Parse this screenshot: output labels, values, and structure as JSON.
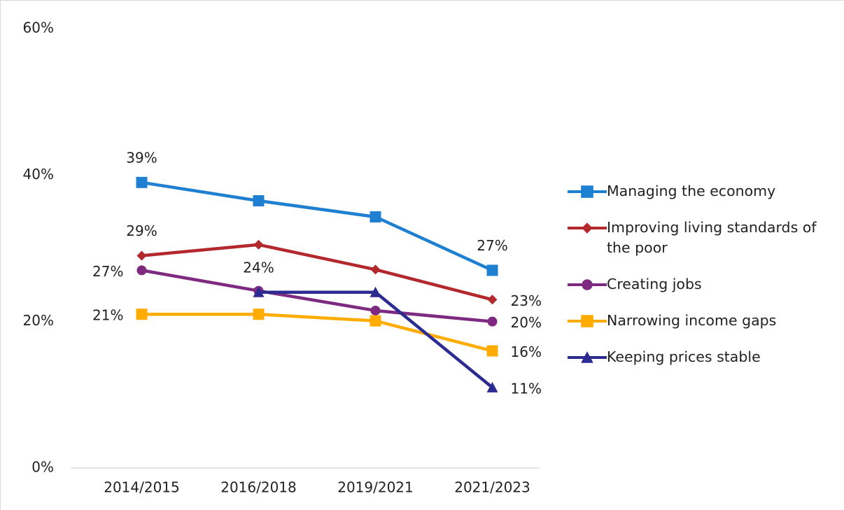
{
  "chart_data": {
    "type": "line",
    "categories": [
      "2014/2015",
      "2016/2018",
      "2019/2021",
      "2021/2023"
    ],
    "ylim": [
      0,
      60
    ],
    "yticks": [
      {
        "value": 0,
        "label": "0%"
      },
      {
        "value": 20,
        "label": "20%"
      },
      {
        "value": 40,
        "label": "40%"
      },
      {
        "value": 60,
        "label": "60%"
      }
    ],
    "grid": false,
    "legend": "right",
    "series": [
      {
        "name": "Managing the economy",
        "color": "#1f7fd0",
        "marker": "square",
        "values": [
          39,
          36.5,
          34.3,
          27
        ],
        "value_labels": [
          "39%",
          null,
          null,
          "27%"
        ]
      },
      {
        "name": "Improving living standards of the poor",
        "color": "#b3282d",
        "marker": "diamond",
        "values": [
          29,
          30.5,
          27.1,
          23
        ],
        "value_labels": [
          "29%",
          null,
          null,
          "23%"
        ]
      },
      {
        "name": "Creating jobs",
        "color": "#7d2a80",
        "marker": "circle",
        "values": [
          27,
          24.2,
          21.5,
          20
        ],
        "value_labels": [
          "27%",
          null,
          null,
          "20%"
        ]
      },
      {
        "name": "Narrowing income gaps",
        "color": "#ffab00",
        "marker": "square",
        "values": [
          21,
          21,
          20.1,
          16
        ],
        "value_labels": [
          "21%",
          null,
          null,
          "16%"
        ]
      },
      {
        "name": "Keeping prices stable",
        "color": "#2b2b91",
        "marker": "triangle",
        "values": [
          null,
          24,
          24,
          11
        ],
        "value_labels": [
          null,
          "24%",
          null,
          "11%"
        ]
      }
    ]
  }
}
